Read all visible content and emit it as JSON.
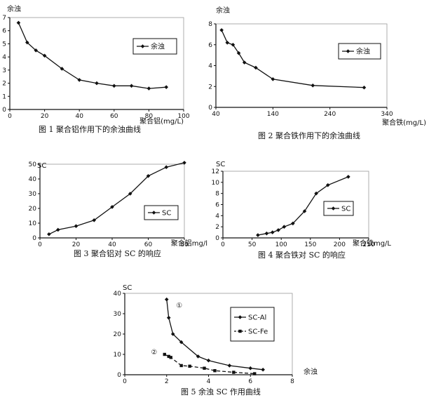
{
  "chart_data": [
    {
      "id": "fig1",
      "type": "line",
      "ylabel": "余浊",
      "xlabel": "聚合铝(mg/L)",
      "caption": "图 1   聚合铝作用下的余浊曲线",
      "xlim": [
        0,
        100
      ],
      "ylim": [
        0,
        7
      ],
      "xticks": [
        "0",
        "20",
        "40",
        "60",
        "80",
        "100"
      ],
      "yticks": [
        "0",
        "1",
        "2",
        "3",
        "4",
        "5",
        "6",
        "7"
      ],
      "legend": "top-right",
      "series": [
        {
          "name": "余浊",
          "marker": "diamond",
          "x": [
            5,
            10,
            15,
            20,
            30,
            40,
            50,
            60,
            70,
            80,
            90
          ],
          "y": [
            6.6,
            5.1,
            4.5,
            4.1,
            3.1,
            2.25,
            2.0,
            1.8,
            1.8,
            1.6,
            1.7
          ]
        }
      ]
    },
    {
      "id": "fig2",
      "type": "line",
      "ylabel": "余浊",
      "xlabel": "聚合铁(mg/L)",
      "caption": "图 2   聚合铁作用下的余浊曲线",
      "xlim": [
        40,
        340
      ],
      "ylim": [
        0,
        8
      ],
      "xticks": [
        "40",
        "140",
        "240",
        "340"
      ],
      "yticks": [
        "0",
        "2",
        "4",
        "6",
        "8"
      ],
      "legend": "top-right",
      "series": [
        {
          "name": "余浊",
          "marker": "diamond",
          "x": [
            50,
            60,
            70,
            80,
            90,
            110,
            140,
            210,
            300
          ],
          "y": [
            7.4,
            6.2,
            6.0,
            5.2,
            4.3,
            3.8,
            2.7,
            2.1,
            1.9
          ]
        }
      ]
    },
    {
      "id": "fig3",
      "type": "line",
      "ylabel": "SC",
      "xlabel": "聚合铝mg/l",
      "caption": "图 3   聚合铝对 SC 的响应",
      "xlim": [
        0,
        80
      ],
      "ylim": [
        0,
        50
      ],
      "xticks": [
        "0",
        "20",
        "40",
        "60",
        "80"
      ],
      "yticks": [
        "0",
        "10",
        "20",
        "30",
        "40",
        "50"
      ],
      "legend": "right",
      "series": [
        {
          "name": "SC",
          "marker": "diamond",
          "x": [
            5,
            10,
            20,
            30,
            40,
            50,
            60,
            70,
            80
          ],
          "y": [
            2.5,
            5.5,
            8,
            12,
            21,
            30,
            42,
            48,
            51
          ]
        }
      ]
    },
    {
      "id": "fig4",
      "type": "line",
      "ylabel": "SC",
      "xlabel": "聚合铁mg/L",
      "caption": "图 4   聚合铁对 SC 的响应",
      "xlim": [
        0,
        250
      ],
      "ylim": [
        0,
        12
      ],
      "xticks": [
        "0",
        "50",
        "100",
        "150",
        "200",
        "250"
      ],
      "yticks": [
        "0",
        "2",
        "4",
        "6",
        "8",
        "10",
        "12"
      ],
      "legend": "top-right",
      "series": [
        {
          "name": "SC",
          "marker": "diamond",
          "x": [
            60,
            75,
            85,
            95,
            105,
            120,
            140,
            160,
            180,
            215
          ],
          "y": [
            0.5,
            0.8,
            1.0,
            1.4,
            2.0,
            2.6,
            4.8,
            8.0,
            9.5,
            11
          ]
        }
      ]
    },
    {
      "id": "fig5",
      "type": "line",
      "ylabel": "SC",
      "xlabel": "余浊",
      "caption": "图 5   余浊 SC 作用曲线",
      "xlim": [
        0,
        8
      ],
      "ylim": [
        0,
        40
      ],
      "xticks": [
        "0",
        "2",
        "4",
        "6",
        "8"
      ],
      "yticks": [
        "0",
        "10",
        "20",
        "30",
        "40"
      ],
      "legend": "top-right",
      "annotations": [
        "①",
        "②"
      ],
      "series": [
        {
          "name": "SC-Al",
          "marker": "diamond",
          "dash": false,
          "annotation": "①",
          "x": [
            2.0,
            2.1,
            2.3,
            2.7,
            3.5,
            4.0,
            5.0,
            6.0,
            6.6
          ],
          "y": [
            37,
            28,
            20,
            16,
            9,
            7,
            4.5,
            3.2,
            2.5
          ]
        },
        {
          "name": "SC-Fe",
          "marker": "square",
          "dash": true,
          "annotation": "②",
          "x": [
            1.9,
            2.1,
            2.2,
            2.7,
            3.1,
            3.8,
            4.3,
            5.2,
            6.2
          ],
          "y": [
            10,
            9,
            8.5,
            4.5,
            4.2,
            3.2,
            2.0,
            1.2,
            0.5
          ]
        }
      ]
    }
  ]
}
